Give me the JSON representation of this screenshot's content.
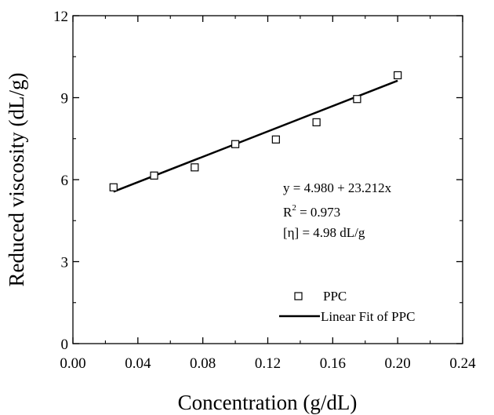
{
  "chart_data": {
    "type": "scatter",
    "xlabel": "Concentration (g/dL)",
    "ylabel": "Reduced viscosity (dL/g)",
    "xlim": [
      0.0,
      0.24
    ],
    "ylim": [
      0,
      12
    ],
    "x_ticks": [
      "0.00",
      "0.04",
      "0.08",
      "0.12",
      "0.16",
      "0.20",
      "0.24"
    ],
    "y_ticks": [
      "0",
      "3",
      "6",
      "9",
      "12"
    ],
    "series": [
      {
        "name": "PPC",
        "marker": "open-square",
        "x": [
          0.025,
          0.05,
          0.075,
          0.1,
          0.125,
          0.15,
          0.175,
          0.2
        ],
        "y": [
          5.72,
          6.15,
          6.45,
          7.3,
          7.47,
          8.1,
          8.95,
          9.82
        ]
      },
      {
        "name": "Linear Fit of PPC",
        "style": "line",
        "intercept": 4.98,
        "slope": 23.212,
        "x": [
          0.025,
          0.2
        ]
      }
    ],
    "annotations": {
      "equation": "y = 4.980 + 23.212x",
      "r2_prefix": "R",
      "r2_sup": "2",
      "r2_value": " = 0.973",
      "intrinsic": "[η] = 4.98 dL/g"
    },
    "legend_position": "bottom-right"
  }
}
